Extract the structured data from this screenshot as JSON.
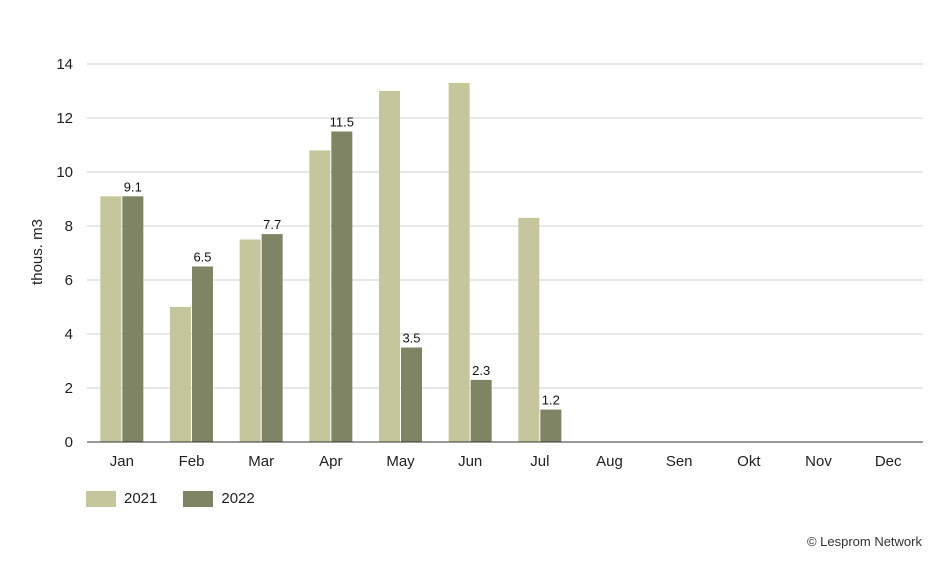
{
  "chart_data": {
    "type": "bar",
    "ylabel": "thous. m3",
    "ylim": [
      0,
      14
    ],
    "yticks": [
      0,
      2,
      4,
      6,
      8,
      10,
      12,
      14
    ],
    "grid": true,
    "legend_position": "bottom-left",
    "categories": [
      "Jan",
      "Feb",
      "Mar",
      "Apr",
      "May",
      "Jun",
      "Jul",
      "Aug",
      "Sen",
      "Okt",
      "Nov",
      "Dec"
    ],
    "series": [
      {
        "name": "2021",
        "color": "#c6c69c",
        "values": [
          9.1,
          5.0,
          7.5,
          10.8,
          13.0,
          13.3,
          8.3,
          null,
          null,
          null,
          null,
          null
        ],
        "show_labels": false
      },
      {
        "name": "2022",
        "color": "#7f8465",
        "values": [
          9.1,
          6.5,
          7.7,
          11.5,
          3.5,
          2.3,
          1.2,
          null,
          null,
          null,
          null,
          null
        ],
        "show_labels": true
      }
    ]
  },
  "footer": {
    "copyright": "© Lesprom Network"
  }
}
